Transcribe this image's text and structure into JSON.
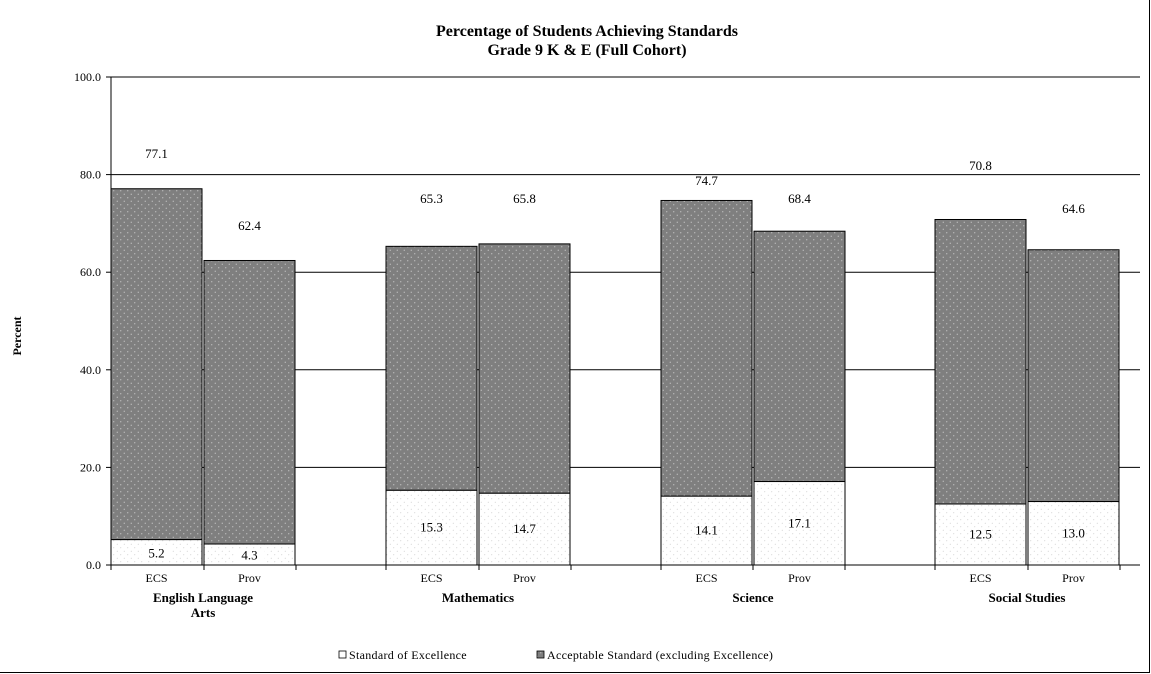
{
  "chart_data": {
    "type": "bar",
    "stacked": true,
    "title": "Percentage of Students Achieving Standards",
    "subtitle": "Grade 9 K & E (Full Cohort)",
    "ylabel": "Percent",
    "xlabel": "",
    "ylim": [
      0,
      100
    ],
    "yticks": [
      "0.0",
      "20.0",
      "40.0",
      "60.0",
      "80.0",
      "100.0"
    ],
    "grid": true,
    "legend_position": "bottom",
    "groups": [
      {
        "name": "English Language Arts",
        "label_lines": [
          "English Language",
          "Arts"
        ],
        "bars": [
          {
            "sub": "ECS",
            "excellence": 5.2,
            "total": 77.1,
            "excellence_label": "5.2",
            "total_label": "77.1"
          },
          {
            "sub": "Prov",
            "excellence": 4.3,
            "total": 62.4,
            "excellence_label": "4.3",
            "total_label": "62.4"
          }
        ]
      },
      {
        "name": "Mathematics",
        "label_lines": [
          "Mathematics"
        ],
        "bars": [
          {
            "sub": "ECS",
            "excellence": 15.3,
            "total": 65.3,
            "excellence_label": "15.3",
            "total_label": "65.3"
          },
          {
            "sub": "Prov",
            "excellence": 14.7,
            "total": 65.8,
            "excellence_label": "14.7",
            "total_label": "65.8"
          }
        ]
      },
      {
        "name": "Science",
        "label_lines": [
          "Science"
        ],
        "bars": [
          {
            "sub": "ECS",
            "excellence": 14.1,
            "total": 74.7,
            "excellence_label": "14.1",
            "total_label": "74.7"
          },
          {
            "sub": "Prov",
            "excellence": 17.1,
            "total": 68.4,
            "excellence_label": "17.1",
            "total_label": "68.4"
          }
        ]
      },
      {
        "name": "Social Studies",
        "label_lines": [
          "Social Studies"
        ],
        "bars": [
          {
            "sub": "ECS",
            "excellence": 12.5,
            "total": 70.8,
            "excellence_label": "12.5",
            "total_label": "70.8"
          },
          {
            "sub": "Prov",
            "excellence": 13.0,
            "total": 64.6,
            "excellence_label": "13.0",
            "total_label": "64.6"
          }
        ]
      }
    ],
    "series": [
      {
        "name": "Standard of Excellence",
        "color": "#ffffff",
        "pattern": "light-dots"
      },
      {
        "name": "Acceptable Standard (excluding Excellence)",
        "color": "#7f7f7f",
        "pattern": "dark-dots"
      }
    ]
  }
}
